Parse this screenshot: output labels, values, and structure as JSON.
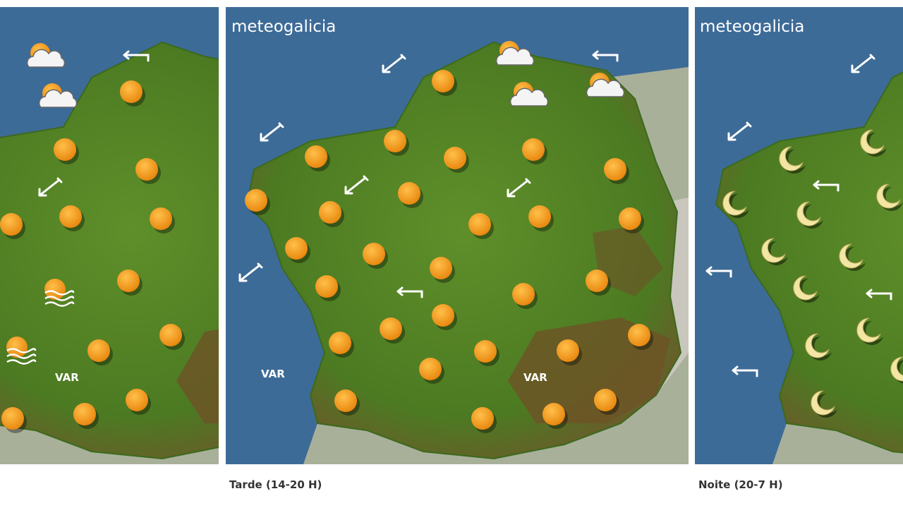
{
  "panels": [
    {
      "labels": [
        "VAR"
      ]
    },
    {
      "logo": "meteogalicia",
      "labels": [
        "VAR",
        "VAR"
      ],
      "caption": "Tarde (14-20 H)"
    },
    {
      "logo": "meteogalicia",
      "caption": "Noite (20-7 H)"
    }
  ]
}
